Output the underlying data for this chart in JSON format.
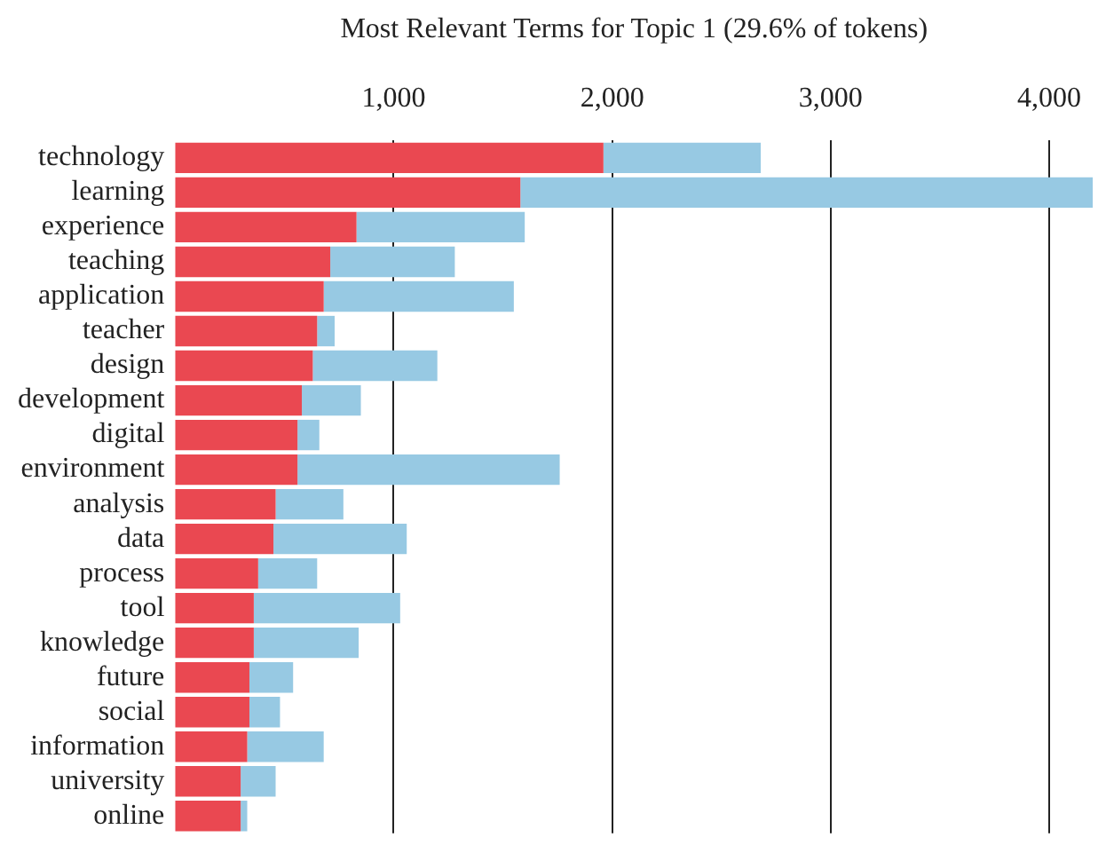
{
  "chart_data": {
    "type": "bar",
    "orientation": "horizontal",
    "stacked": true,
    "title": "Most Relevant Terms for Topic 1 (29.6% of tokens)",
    "categories": [
      "technology",
      "learning",
      "experience",
      "teaching",
      "application",
      "teacher",
      "design",
      "development",
      "digital",
      "environment",
      "analysis",
      "data",
      "process",
      "tool",
      "knowledge",
      "future",
      "social",
      "information",
      "university",
      "online"
    ],
    "series": [
      {
        "color": "#ea4851",
        "values": [
          1960,
          1580,
          830,
          710,
          680,
          650,
          630,
          580,
          560,
          560,
          460,
          450,
          380,
          360,
          360,
          340,
          340,
          330,
          300,
          300
        ]
      },
      {
        "color": "#97c9e3",
        "values": [
          720,
          2620,
          770,
          570,
          870,
          80,
          570,
          270,
          100,
          1200,
          310,
          610,
          270,
          670,
          480,
          200,
          140,
          350,
          160,
          30
        ]
      }
    ],
    "xlim": [
      0,
      4200
    ],
    "xticks": [
      {
        "value": 1000,
        "label": "1,000"
      },
      {
        "value": 2000,
        "label": "2,000"
      },
      {
        "value": 3000,
        "label": "3,000"
      },
      {
        "value": 4000,
        "label": "4,000"
      }
    ],
    "grid": "x",
    "legend": false
  }
}
